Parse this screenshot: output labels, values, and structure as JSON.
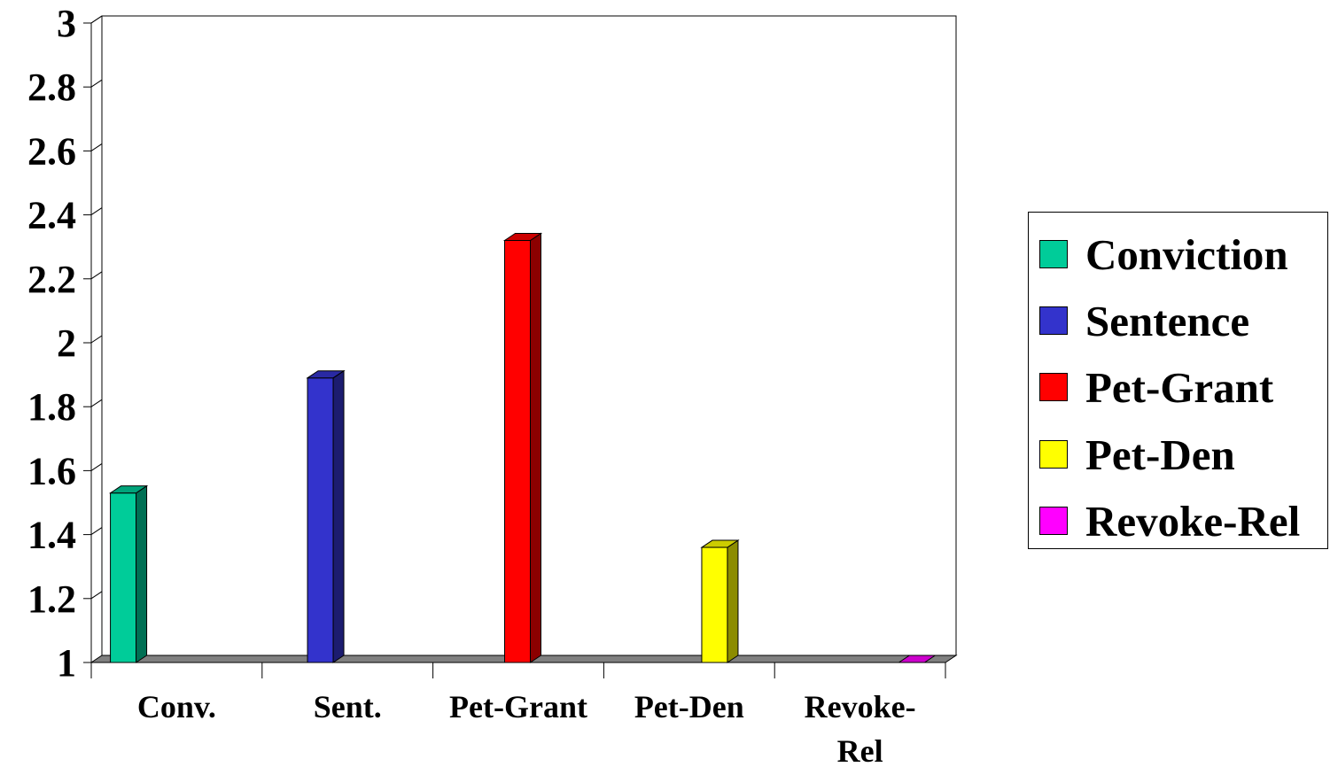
{
  "chart_data": {
    "type": "bar",
    "categories": [
      "Conv.",
      "Sent.",
      "Pet-Grant",
      "Pet-Den",
      "Revoke-Rel"
    ],
    "category_lines": [
      [
        "Conv."
      ],
      [
        "Sent."
      ],
      [
        "Pet-Grant"
      ],
      [
        "Pet-Den"
      ],
      [
        "Revoke-",
        "Rel"
      ]
    ],
    "series": [
      {
        "name": "Conviction",
        "color": "#00CC99",
        "values": [
          1.53,
          null,
          null,
          null,
          null
        ]
      },
      {
        "name": "Sentence",
        "color": "#3333CC",
        "values": [
          null,
          1.89,
          null,
          null,
          null
        ]
      },
      {
        "name": "Pet-Grant",
        "color": "#FF0000",
        "values": [
          null,
          null,
          2.32,
          null,
          null
        ]
      },
      {
        "name": "Pet-Den",
        "color": "#FFFF00",
        "values": [
          null,
          null,
          null,
          1.36,
          null
        ]
      },
      {
        "name": "Revoke-Rel",
        "color": "#FF00FF",
        "values": [
          null,
          null,
          null,
          null,
          1.0
        ]
      }
    ],
    "ylim": [
      1,
      3
    ],
    "yticks": [
      "1",
      "1.2",
      "1.4",
      "1.6",
      "1.8",
      "2",
      "2.2",
      "2.4",
      "2.6",
      "2.8",
      "3"
    ],
    "grid": true,
    "legend_position": "right",
    "title": "",
    "xlabel": "",
    "ylabel": ""
  }
}
